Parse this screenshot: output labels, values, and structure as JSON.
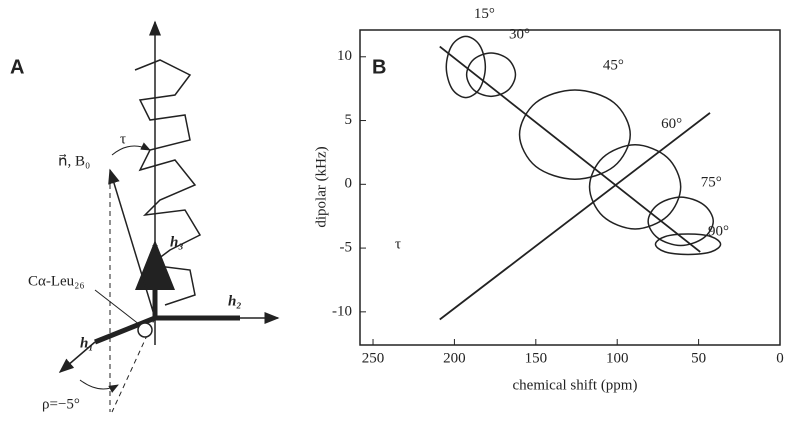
{
  "panel_a": {
    "label": "A",
    "texts": [
      "n⃗, B₀",
      "τ",
      "h₃",
      "h₂",
      "h₁",
      "Cα-Leu₂₆",
      "ρ=−5°"
    ]
  },
  "chart_data": {
    "type": "line",
    "annotation": "B",
    "symbol": "τ",
    "x_label": "chemical shift (ppm)",
    "y_label": "dipolar (kHz)",
    "xlim": [
      258,
      0
    ],
    "ylim": [
      -12.6,
      12.1
    ],
    "xticks": [
      250,
      200,
      150,
      100,
      50,
      0
    ],
    "yticks": [
      -10,
      -5,
      0,
      5,
      10
    ],
    "color": "#222222",
    "series": [
      {
        "name": "15°",
        "x": [
          205,
          201.5,
          193,
          184.5,
          181,
          184.5,
          193,
          201.5
        ],
        "values": [
          9.2,
          10.9,
          11.6,
          10.9,
          9.2,
          7.5,
          6.8,
          7.5
        ]
      },
      {
        "name": "30°",
        "x": [
          192.5,
          188.1,
          177.5,
          166.9,
          162.5,
          166.9,
          177.5,
          188.1
        ],
        "values": [
          8.6,
          9.8,
          10.3,
          9.8,
          8.6,
          7.4,
          6.9,
          7.4
        ]
      },
      {
        "name": "45°",
        "x": [
          160,
          150,
          126,
          102,
          92,
          102,
          126,
          150
        ],
        "values": [
          3.9,
          6.4,
          7.4,
          6.4,
          3.9,
          1.4,
          0.4,
          1.4
        ]
      },
      {
        "name": "60°",
        "x": [
          117,
          108.8,
          89,
          69.2,
          61,
          69.2,
          89,
          108.8
        ],
        "values": [
          -0.2,
          2.1,
          3.1,
          2.1,
          -0.2,
          -2.5,
          -3.5,
          -2.5
        ]
      },
      {
        "name": "75°",
        "x": [
          81,
          75.1,
          61,
          46.9,
          41,
          46.9,
          61,
          75.1
        ],
        "values": [
          -2.9,
          -1.6,
          -1.0,
          -1.6,
          -2.9,
          -4.2,
          -4.8,
          -4.2
        ]
      },
      {
        "name": "90°",
        "x": [
          76.5,
          70.6,
          56.5,
          42.4,
          36.5,
          42.4,
          56.5,
          70.6
        ],
        "values": [
          -4.7,
          -4.1,
          -3.9,
          -4.1,
          -4.7,
          -5.3,
          -5.5,
          -5.3
        ]
      }
    ],
    "lines": [
      {
        "x": [
          209,
          49
        ],
        "values": [
          10.8,
          -5.3
        ]
      },
      {
        "x": [
          209,
          43
        ],
        "values": [
          -10.6,
          5.6
        ]
      }
    ]
  }
}
